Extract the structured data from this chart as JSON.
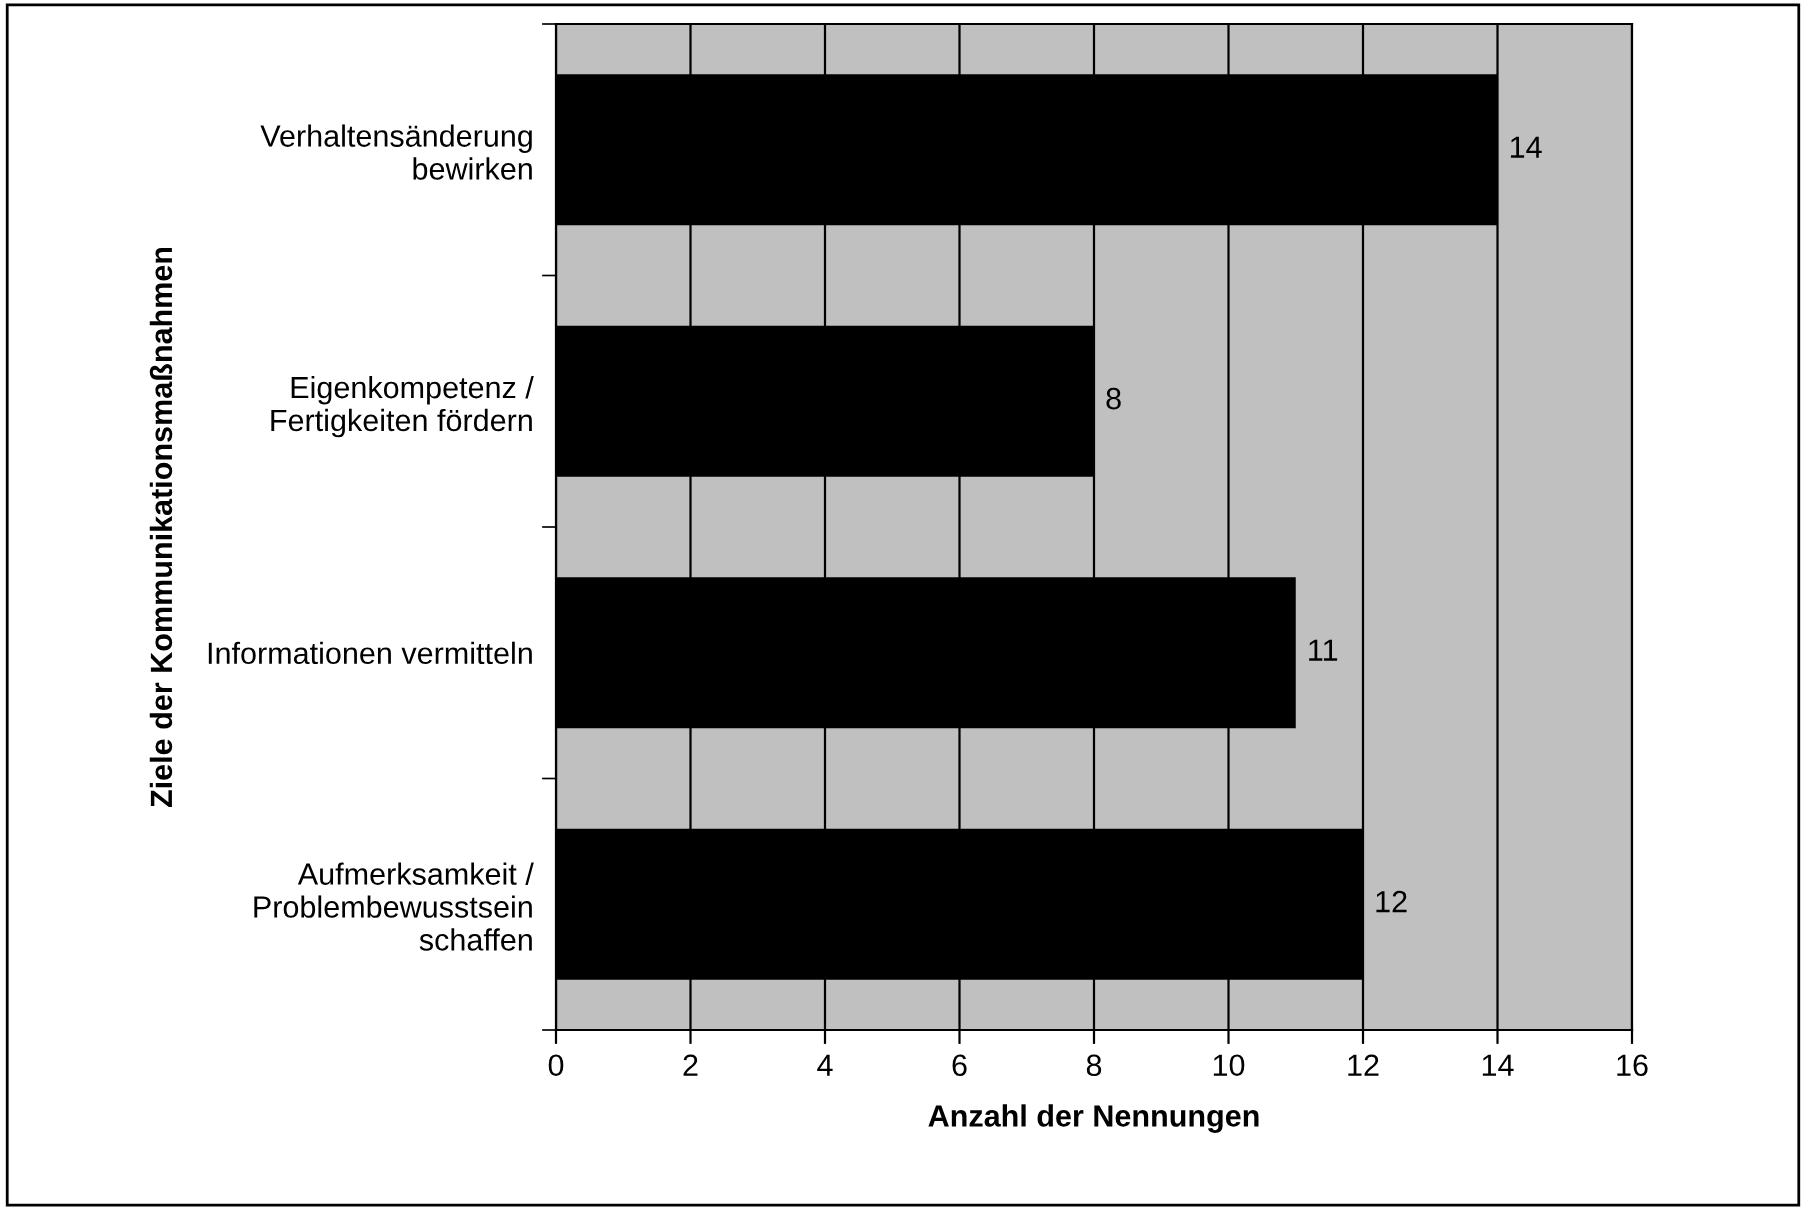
{
  "chart_data": {
    "type": "bar",
    "orientation": "horizontal",
    "xlabel": "Anzahl der Nennungen",
    "ylabel": "Ziele der Kommunikationsmaßnahmen",
    "categories": [
      "Verhaltensänderung\nbewirken",
      "Eigenkompetenz /\nFertigkeiten fördern",
      "Informationen vermitteln",
      "Aufmerksamkeit /\nProblembewusstsein\nschaffen"
    ],
    "values": [
      14,
      8,
      11,
      12
    ],
    "color": "#000000",
    "xlim": [
      0,
      16
    ],
    "xticks": [
      0,
      2,
      4,
      6,
      8,
      10,
      12,
      14,
      16
    ],
    "grid": "x",
    "data_labels": true,
    "legend": false
  }
}
